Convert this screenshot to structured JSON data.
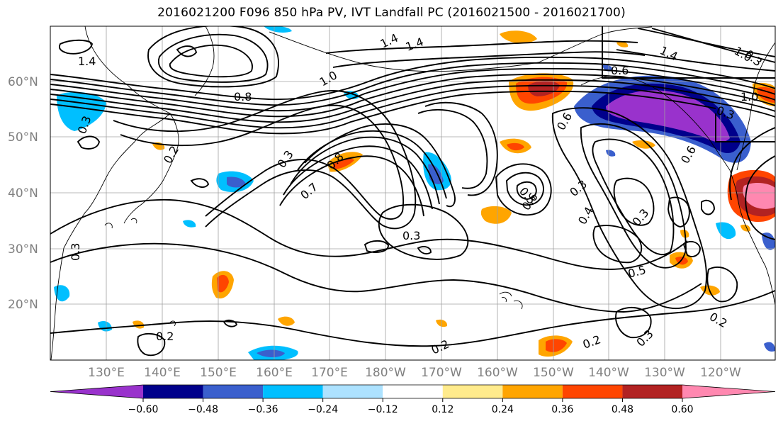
{
  "title": "2016021200 F096 850 hPa PV, IVT Landfall PC (2016021500 - 2016021700)",
  "lat_labels": [
    "60°N",
    "50°N",
    "40°N",
    "30°N",
    "20°N"
  ],
  "lon_labels": [
    "130°E",
    "140°E",
    "150°E",
    "160°E",
    "170°E",
    "180°W",
    "170°W",
    "160°W",
    "150°W",
    "140°W",
    "130°W",
    "120°W"
  ],
  "colorbar": {
    "ticks": [
      "−0.60",
      "−0.48",
      "−0.36",
      "−0.24",
      "−0.12",
      "0.12",
      "0.24",
      "0.36",
      "0.48",
      "0.60"
    ],
    "colors": [
      "#9932CC",
      "#00008B",
      "#3A5FCD",
      "#00BFFF",
      "#ADE2FF",
      "#FFFFFF",
      "#FFEB8C",
      "#FFA500",
      "#FF4500",
      "#B22222",
      "#FF88B0"
    ]
  },
  "contour_labels": [
    "1.4",
    "1.4",
    "1.4",
    "1.4",
    "1.0",
    "0.8",
    "1.0",
    "0.6",
    "1.0",
    "0.3",
    "0.6",
    "0.6",
    "0.2",
    "0.3",
    "0.8",
    "0.7",
    "0.3",
    "0.6",
    "0.5",
    "0.3",
    "0.4",
    "0.3",
    "0.3",
    "0.5",
    "0.2",
    "0.2",
    "0.2",
    "0.2",
    "0.3",
    "0.3",
    "0.3"
  ]
}
